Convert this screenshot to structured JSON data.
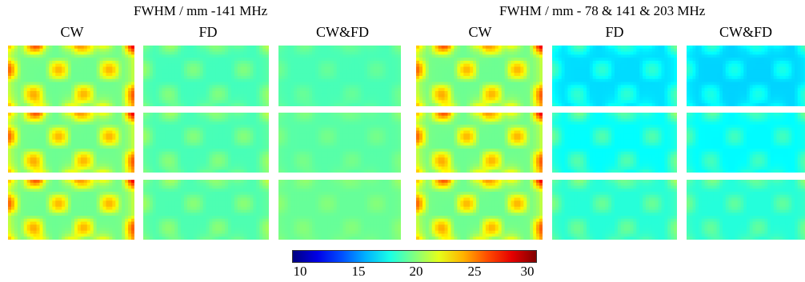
{
  "chart_data": {
    "type": "heatmap",
    "colormap": "jet",
    "grid": false,
    "groups": [
      {
        "title": "FWHM / mm -141 MHz",
        "columns": [
          {
            "label": "CW",
            "rows": [
              {
                "mean": 21.8,
                "contrast": 3.6
              },
              {
                "mean": 21.8,
                "contrast": 3.6
              },
              {
                "mean": 21.8,
                "contrast": 3.6
              }
            ]
          },
          {
            "label": "FD",
            "rows": [
              {
                "mean": 19.4,
                "contrast": 1.0
              },
              {
                "mean": 19.5,
                "contrast": 1.0
              },
              {
                "mean": 19.6,
                "contrast": 1.0
              }
            ]
          },
          {
            "label": "CW&FD",
            "rows": [
              {
                "mean": 19.2,
                "contrast": 0.5
              },
              {
                "mean": 19.5,
                "contrast": 0.5
              },
              {
                "mean": 19.8,
                "contrast": 0.5
              }
            ]
          }
        ]
      },
      {
        "title": "FWHM / mm - 78 & 141 & 203 MHz",
        "columns": [
          {
            "label": "CW",
            "rows": [
              {
                "mean": 21.8,
                "contrast": 3.6
              },
              {
                "mean": 21.8,
                "contrast": 3.6
              },
              {
                "mean": 21.8,
                "contrast": 3.6
              }
            ]
          },
          {
            "label": "FD",
            "rows": [
              {
                "mean": 17.6,
                "contrast": 1.3
              },
              {
                "mean": 18.3,
                "contrast": 1.3
              },
              {
                "mean": 18.9,
                "contrast": 1.1
              }
            ]
          },
          {
            "label": "CW&FD",
            "rows": [
              {
                "mean": 17.3,
                "contrast": 1.1
              },
              {
                "mean": 18.1,
                "contrast": 1.1
              },
              {
                "mean": 18.8,
                "contrast": 1.0
              }
            ]
          }
        ]
      }
    ],
    "colorbar": {
      "min": 10,
      "max": 30,
      "ticks": [
        "10",
        "15",
        "20",
        "25",
        "30"
      ]
    }
  }
}
